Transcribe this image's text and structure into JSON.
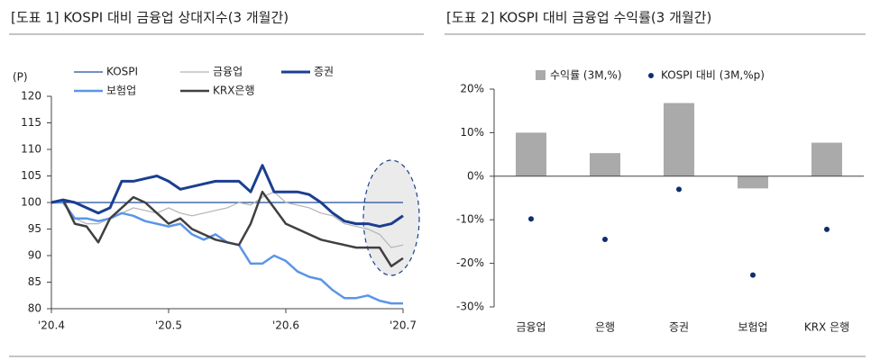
{
  "chart_data": [
    {
      "type": "line",
      "title": "[도표 1] KOSPI 대비 금융업 상대지수(3 개월간)",
      "ylabel": "(P)",
      "categories": [
        "'20.4",
        null,
        null,
        null,
        null,
        null,
        null,
        null,
        null,
        null,
        "'20.5",
        null,
        null,
        null,
        null,
        null,
        null,
        null,
        null,
        null,
        "'20.6",
        null,
        null,
        null,
        null,
        null,
        null,
        null,
        null,
        null,
        "'20.7"
      ],
      "ylim": [
        80,
        120
      ],
      "yticks": [
        80,
        85,
        90,
        95,
        100,
        105,
        110,
        115,
        120
      ],
      "series": [
        {
          "name": "KOSPI",
          "color": "#1f4e9a",
          "values": [
            100,
            100,
            100,
            100,
            100,
            100,
            100,
            100,
            100,
            100,
            100,
            100,
            100,
            100,
            100,
            100,
            100,
            100,
            100,
            100,
            100,
            100,
            100,
            100,
            100,
            100,
            100,
            100,
            100,
            100,
            100
          ]
        },
        {
          "name": "금융업",
          "color": "#b3b3b3",
          "values": [
            100,
            100.5,
            97,
            96,
            96,
            97,
            98,
            99,
            98.5,
            98,
            99,
            98,
            97.5,
            98,
            98.5,
            99,
            100,
            99.5,
            101,
            102,
            100,
            99.5,
            99,
            98,
            97.5,
            96,
            95.5,
            95,
            94,
            91.5,
            92
          ]
        },
        {
          "name": "증권",
          "color": "#1a3f8f",
          "values": [
            100,
            100.5,
            100,
            99,
            98,
            99,
            104,
            104,
            104.5,
            105,
            104,
            102.5,
            103,
            103.5,
            104,
            104,
            104,
            102,
            107,
            102,
            102,
            102,
            101.5,
            100,
            98,
            96.5,
            96,
            96,
            95.5,
            96,
            97.5
          ]
        },
        {
          "name": "보험업",
          "color": "#5b95e8",
          "values": [
            100,
            100,
            97,
            97,
            96.5,
            97,
            98,
            97.5,
            96.5,
            96,
            95.5,
            96,
            94,
            93,
            94,
            92.5,
            92,
            88.5,
            88.5,
            90,
            89,
            87,
            86,
            85.5,
            83.5,
            82,
            82,
            82.5,
            81.5,
            81,
            81
          ]
        },
        {
          "name": "KRX은행",
          "color": "#404040",
          "values": [
            100,
            100.5,
            96,
            95.5,
            92.5,
            97,
            99,
            101,
            100,
            98,
            96,
            97,
            95,
            94,
            93,
            92.5,
            92,
            96,
            102,
            99,
            96,
            95,
            94,
            93,
            92.5,
            92,
            91.5,
            91.5,
            91.5,
            88,
            89.5
          ]
        }
      ]
    },
    {
      "type": "bar",
      "title": "[도표 2] KOSPI 대비 금융업 수익률(3 개월간)",
      "categories": [
        "금융업",
        "은행",
        "증권",
        "보험업",
        "KRX 은행"
      ],
      "ylim": [
        -30,
        20
      ],
      "yticks": [
        {
          "value": -30,
          "label": "-30%"
        },
        {
          "value": -20,
          "label": "-20%"
        },
        {
          "value": -10,
          "label": "-10%"
        },
        {
          "value": 0,
          "label": "0%"
        },
        {
          "value": 10,
          "label": "10%"
        },
        {
          "value": 20,
          "label": "20%"
        }
      ],
      "series": [
        {
          "name": "수익률 (3M,%)",
          "type": "bar",
          "color": "#aaaaaa",
          "values": [
            10,
            5.3,
            16.8,
            -2.8,
            7.7
          ]
        },
        {
          "name": "KOSPI 대비 (3M,%p)",
          "type": "scatter",
          "color": "#0e2d6e",
          "values": [
            -9.8,
            -14.5,
            -3,
            -22.7,
            -12.2
          ]
        }
      ]
    }
  ]
}
